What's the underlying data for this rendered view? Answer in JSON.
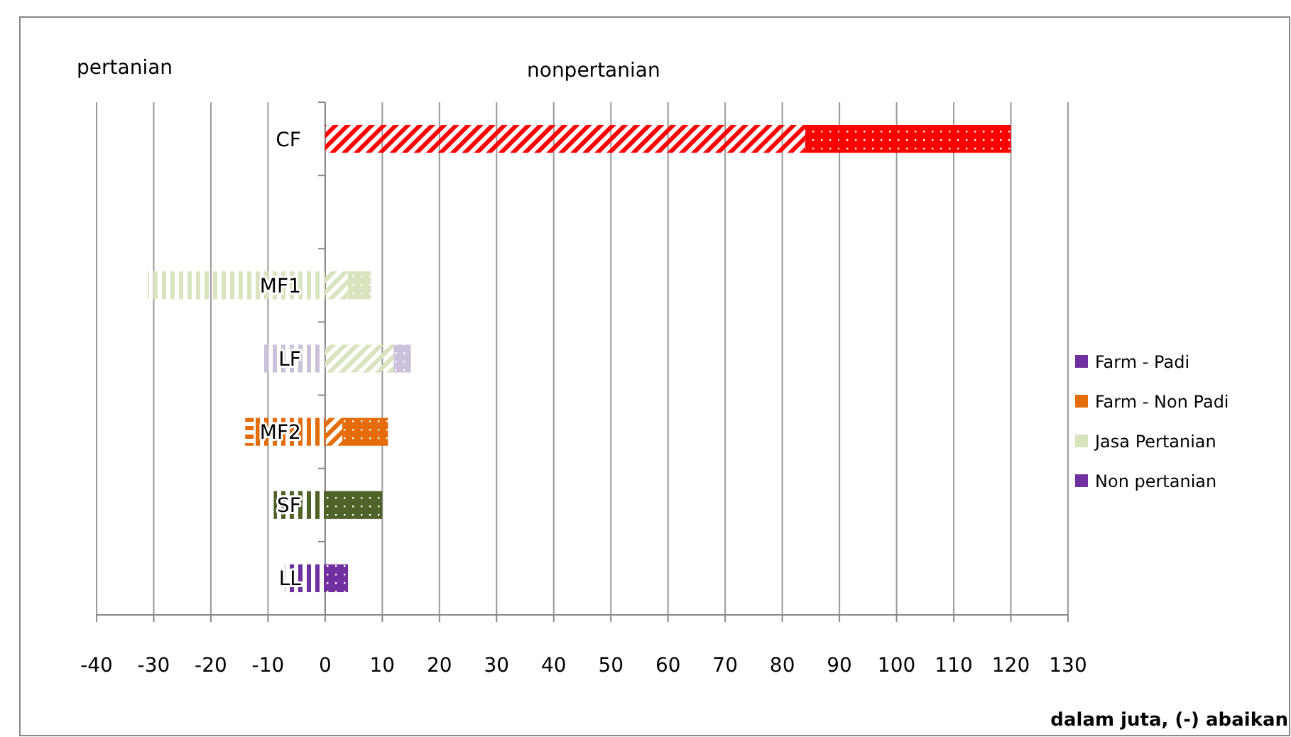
{
  "chart_data": {
    "type": "bar",
    "orientation": "horizontal",
    "stacked": true,
    "categories": [
      "CF",
      null,
      "MF1",
      "LF",
      "MF2",
      "SF",
      "LL"
    ],
    "series": [
      {
        "name": "Farm - Padi",
        "color": "#7030a0",
        "colors": [
          null,
          null,
          "#d7e4bd",
          "#ccc1da",
          "#e46c0a",
          "#4f6228",
          "#7030a0"
        ],
        "values": [
          null,
          null,
          -31,
          -11,
          -12.5,
          -9,
          -7
        ]
      },
      {
        "name": "Farm - Non Padi",
        "color": "#e46c0a",
        "colors": [
          null,
          null,
          null,
          null,
          "#e46c0a",
          null,
          null
        ],
        "values": [
          null,
          null,
          null,
          null,
          -1.5,
          null,
          null
        ]
      },
      {
        "name": "Jasa Pertanian",
        "color": "#d7e4bd",
        "colors": [
          "#ff0000",
          null,
          "#d7e4bd",
          "#d7e4bd",
          "#e46c0a",
          null,
          null
        ],
        "values": [
          84,
          null,
          4,
          12,
          3,
          null,
          null
        ]
      },
      {
        "name": "Non pertanian",
        "color": "#7030a0",
        "colors": [
          "#ff0000",
          null,
          "#d7e4bd",
          "#ccc1da",
          "#e46c0a",
          "#4f6228",
          "#7030a0"
        ],
        "values": [
          36,
          null,
          4,
          3,
          8,
          10,
          4
        ]
      }
    ],
    "xlim": [
      -40,
      130
    ],
    "xticks": [
      -40,
      -30,
      -20,
      -10,
      0,
      10,
      20,
      30,
      40,
      50,
      60,
      70,
      80,
      90,
      100,
      110,
      120,
      130
    ],
    "xlabel": "dalam juta, (-) abaikan",
    "annotations": [
      "pertanian",
      "nonpertanian"
    ],
    "grid": "x",
    "legend": "right"
  }
}
